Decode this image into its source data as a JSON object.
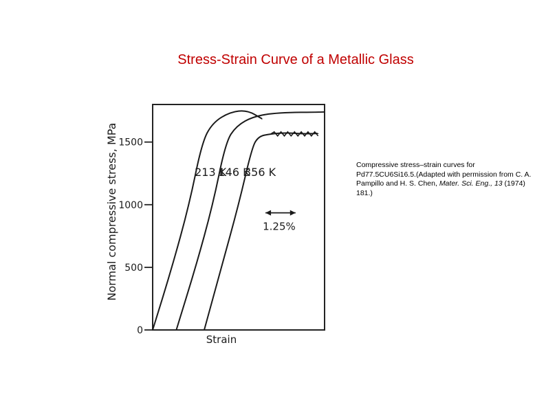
{
  "slide": {
    "title": "Stress-Strain Curve of a Metallic Glass",
    "caption": {
      "text": "Compressive stress–strain curves for Pd77.5CU6Si16.5.(Adapted with permission from C. A. Pampillo and H. S. Chen, ",
      "journal": "Mater. Sci. Eng., 13",
      "end": " (1974) 181.)"
    }
  },
  "chart_data": {
    "type": "line",
    "title": "",
    "xlabel": "Strain",
    "ylabel": "Normal compressive stress, MPa",
    "ylim": [
      0,
      1800
    ],
    "yticks": [
      0,
      500,
      1000,
      1500
    ],
    "ytick_labels": [
      "0",
      "500",
      "1000",
      "1500"
    ],
    "xlim": [
      0,
      8
    ],
    "x_unit": "% strain (estimated from 1.25% scale bar)",
    "scale_bar": "1.25%",
    "grid": false,
    "series": [
      {
        "name": "213 K",
        "x": [
          0.0,
          0.9,
          1.7,
          2.3,
          2.8,
          3.6,
          4.4,
          5.1
        ],
        "y": [
          0,
          500,
          1000,
          1500,
          1655,
          1740,
          1755,
          1685
        ]
      },
      {
        "name": "146 K",
        "x": [
          1.1,
          2.0,
          2.8,
          3.4,
          3.9,
          4.7,
          5.8,
          8.0
        ],
        "y": [
          0,
          500,
          1000,
          1500,
          1630,
          1705,
          1735,
          1740
        ]
      },
      {
        "name": "356 K",
        "x": [
          2.4,
          3.2,
          4.0,
          4.6,
          4.9,
          5.5,
          6.2,
          7.0,
          7.7
        ],
        "y": [
          0,
          500,
          1000,
          1440,
          1545,
          1565,
          1575,
          1565,
          1570
        ]
      }
    ]
  }
}
